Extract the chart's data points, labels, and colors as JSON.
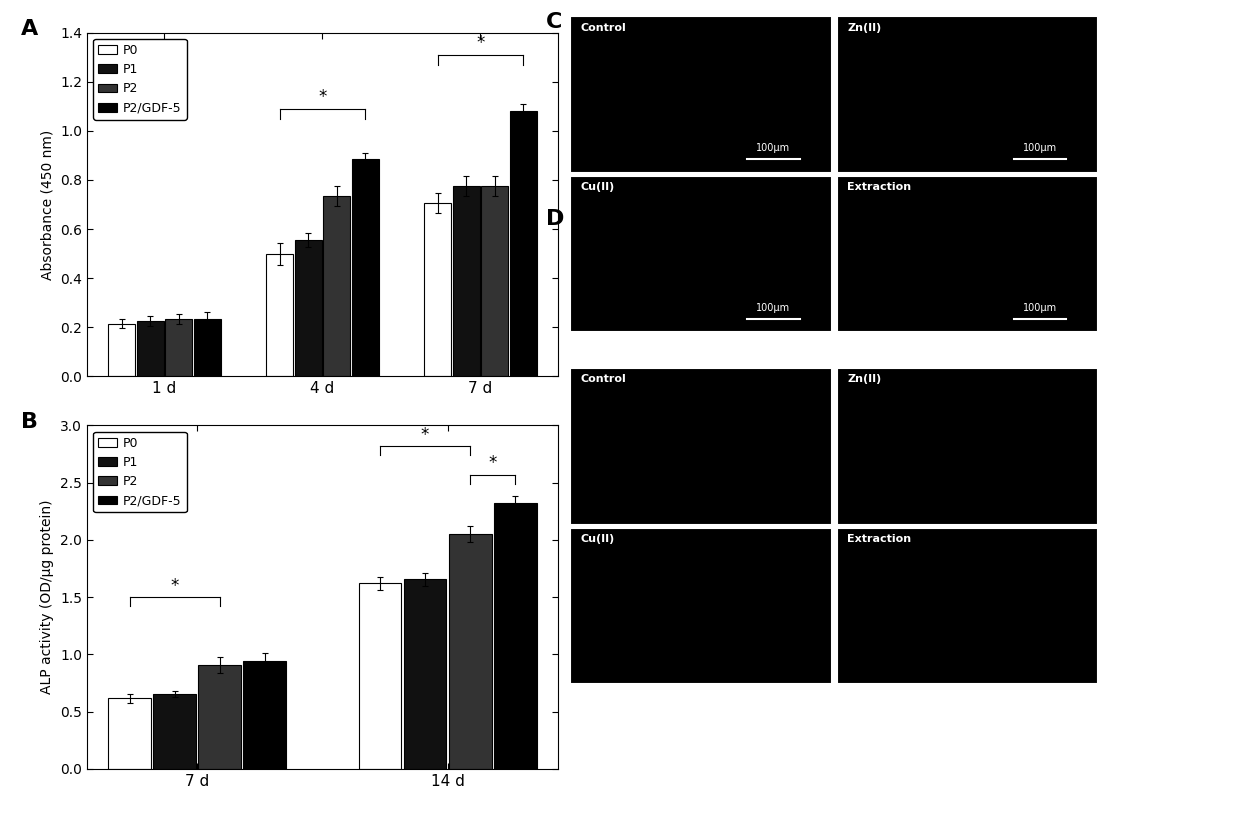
{
  "panel_A": {
    "title_label": "A",
    "groups": [
      "1 d",
      "4 d",
      "7 d"
    ],
    "series": [
      "P0",
      "P1",
      "P2",
      "P2/GDF-5"
    ],
    "colors": [
      "white",
      "#111111",
      "#333333",
      "black"
    ],
    "edgecolor": "black",
    "values": [
      [
        0.215,
        0.225,
        0.235,
        0.235
      ],
      [
        0.5,
        0.555,
        0.735,
        0.885
      ],
      [
        0.705,
        0.775,
        0.775,
        1.08
      ]
    ],
    "errors": [
      [
        0.02,
        0.02,
        0.02,
        0.025
      ],
      [
        0.045,
        0.03,
        0.04,
        0.025
      ],
      [
        0.04,
        0.04,
        0.04,
        0.03
      ]
    ],
    "ylabel": "Absorbance (450 nm)",
    "ylim": [
      0,
      1.4
    ],
    "yticks": [
      0.0,
      0.2,
      0.4,
      0.6,
      0.8,
      1.0,
      1.2,
      1.4
    ]
  },
  "panel_B": {
    "title_label": "B",
    "groups": [
      "7 d",
      "14 d"
    ],
    "series": [
      "P0",
      "P1",
      "P2",
      "P2/GDF-5"
    ],
    "colors": [
      "white",
      "#111111",
      "#333333",
      "black"
    ],
    "edgecolor": "black",
    "values": [
      [
        0.615,
        0.655,
        0.905,
        0.945
      ],
      [
        1.62,
        1.655,
        2.05,
        2.32
      ]
    ],
    "errors": [
      [
        0.04,
        0.025,
        0.07,
        0.065
      ],
      [
        0.055,
        0.055,
        0.07,
        0.065
      ]
    ],
    "ylabel": "ALP activity (OD/μg protein)",
    "ylim": [
      0,
      3.0
    ],
    "yticks": [
      0.0,
      0.5,
      1.0,
      1.5,
      2.0,
      2.5,
      3.0
    ]
  },
  "figure_bg": "white",
  "bar_width": 0.18
}
